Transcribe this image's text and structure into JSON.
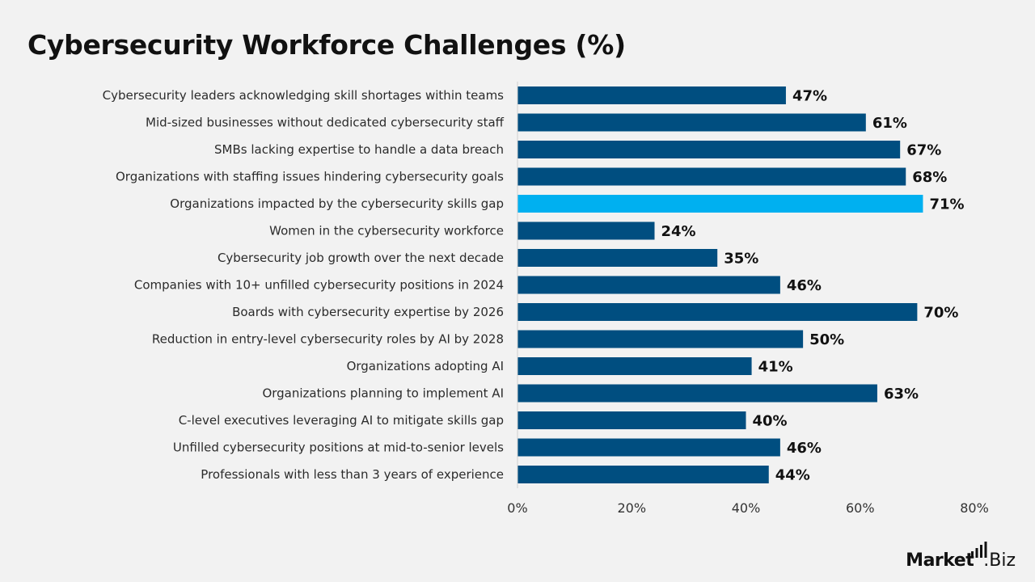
{
  "chart_data": {
    "type": "bar",
    "orientation": "horizontal",
    "title": "Cybersecurity Workforce Challenges (%)",
    "xlabel": "",
    "ylabel": "",
    "xlim": [
      0,
      80
    ],
    "ticks": [
      0,
      20,
      40,
      60,
      80
    ],
    "tick_labels": [
      "0%",
      "20%",
      "40%",
      "60%",
      "80%"
    ],
    "grid": false,
    "categories": [
      "Cybersecurity leaders acknowledging skill shortages within teams",
      "Mid-sized businesses without dedicated cybersecurity staff",
      "SMBs lacking expertise to handle a data breach",
      "Organizations with staffing issues hindering cybersecurity goals",
      "Organizations impacted by the cybersecurity skills gap",
      "Women in the cybersecurity workforce",
      "Cybersecurity job growth over the next decade",
      "Companies with 10+ unfilled cybersecurity positions in 2024",
      "Boards with cybersecurity expertise by 2026",
      "Reduction in entry-level cybersecurity roles by AI by 2028",
      "Organizations adopting AI",
      "Organizations planning to implement AI",
      "C-level executives leveraging AI to mitigate skills gap",
      "Unfilled cybersecurity positions at mid-to-senior levels",
      "Professionals with less than 3 years of experience"
    ],
    "values": [
      47,
      61,
      67,
      68,
      71,
      24,
      35,
      46,
      70,
      50,
      41,
      63,
      40,
      46,
      44
    ],
    "value_labels": [
      "47%",
      "61%",
      "67%",
      "68%",
      "71%",
      "24%",
      "35%",
      "46%",
      "70%",
      "50%",
      "41%",
      "63%",
      "40%",
      "46%",
      "44%"
    ],
    "highlight_index": 4,
    "colors": {
      "bar": "#004e80",
      "highlight": "#00b0f0"
    }
  },
  "brand": {
    "name": "Market",
    "suffix": ".Biz",
    "icon": "bar-chart-icon"
  }
}
